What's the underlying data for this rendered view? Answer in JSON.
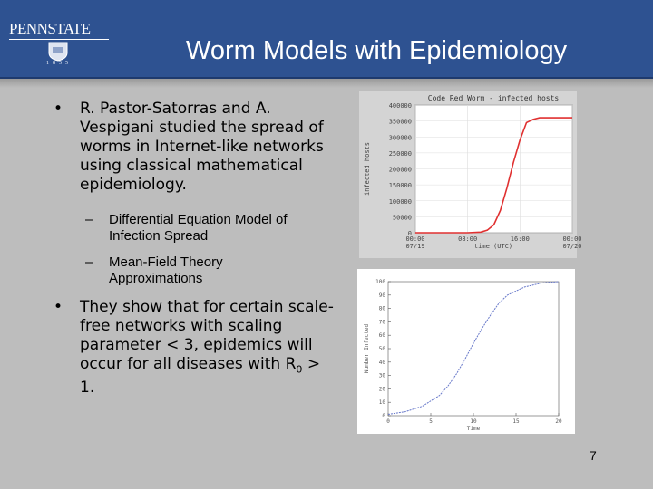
{
  "header": {
    "title": "Worm Models with Epidemiology",
    "logo_text": "PENNSTATE",
    "logo_year": "1855",
    "bg_color": "#2e5291"
  },
  "content": {
    "bullet1": "R. Pastor-Satorras and A. Vespigani studied the spread of worms in Internet-like networks using classical mathematical epidemiology.",
    "sub1": "Differential Equation Model of Infection Spread",
    "sub2": "Mean-Field Theory Approximations",
    "bullet2_pre": "They show that for certain scale-free networks with scaling parameter < 3, epidemics will occur for all diseases with R",
    "bullet2_sub": "0",
    "bullet2_post": " > 1.",
    "bullet_glyph": "•",
    "dash_glyph": "–"
  },
  "charts": {
    "top": {
      "title": "Code Red Worm - infected hosts",
      "ylabel": "infected hosts",
      "xlabel": "time (UTC)",
      "yticks": [
        "400000",
        "350000",
        "300000",
        "250000",
        "200000",
        "150000",
        "100000",
        "50000",
        "0"
      ],
      "xticks": [
        "00:00\n07/19",
        "08:00",
        "16:00",
        "00:00\n07/20"
      ],
      "line_color": "#e03030"
    },
    "bottom": {
      "ylabel": "Number Infected",
      "xlabel": "Time",
      "yticks": [
        "0",
        "10",
        "20",
        "30",
        "40",
        "50",
        "60",
        "70",
        "80",
        "90",
        "100"
      ],
      "xticks": [
        "0",
        "5",
        "10",
        "15",
        "20"
      ],
      "line_color": "#6677c9"
    }
  },
  "chart_data": [
    {
      "type": "line",
      "title": "Code Red Worm - infected hosts",
      "xlabel": "time (UTC)",
      "ylabel": "infected hosts",
      "x_labels": [
        "00:00 07/19",
        "08:00",
        "16:00",
        "00:00 07/20"
      ],
      "x_hours": [
        0,
        4,
        8,
        10,
        11,
        12,
        13,
        14,
        15,
        16,
        17,
        18,
        19,
        20,
        24
      ],
      "y": [
        0,
        0,
        0,
        2000,
        8000,
        25000,
        70000,
        140000,
        220000,
        290000,
        345000,
        355000,
        360000,
        360000,
        360000
      ],
      "ylim": [
        0,
        400000
      ]
    },
    {
      "type": "line",
      "xlabel": "Time",
      "ylabel": "Number Infected",
      "x": [
        0,
        2,
        4,
        6,
        7,
        8,
        9,
        10,
        11,
        12,
        13,
        14,
        16,
        18,
        20
      ],
      "y": [
        1,
        3,
        7,
        15,
        22,
        31,
        42,
        54,
        65,
        75,
        84,
        90,
        96,
        99,
        100
      ],
      "xlim": [
        0,
        20
      ],
      "ylim": [
        0,
        100
      ]
    }
  ],
  "page_number": "7"
}
